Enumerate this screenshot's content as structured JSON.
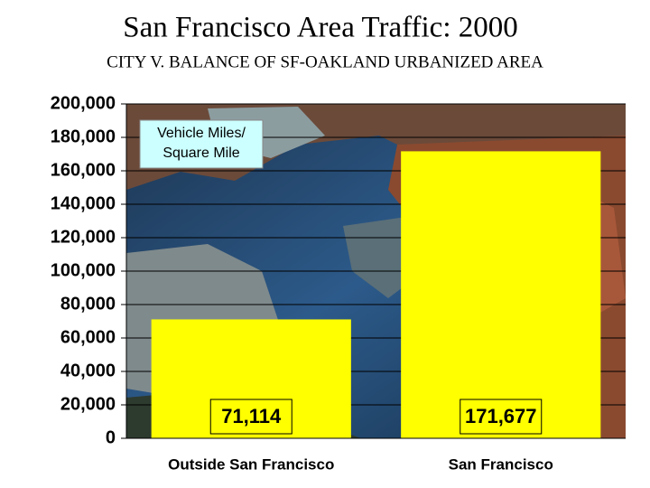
{
  "chart_data": {
    "type": "bar",
    "title": "San Francisco Area Traffic: 2000",
    "subtitle": "CITY V. BALANCE OF SF-OAKLAND URBANIZED AREA",
    "annotation": [
      "Vehicle Miles/",
      "Square Mile"
    ],
    "categories": [
      "Outside San Francisco",
      "San Francisco"
    ],
    "values": [
      71114,
      171677
    ],
    "value_labels": [
      "71,114",
      "171,677"
    ],
    "color": "#ffff00",
    "ylim": [
      0,
      200000
    ],
    "yticks": [
      0,
      {
        "value": 20000,
        "label": "20,000"
      },
      {
        "value": 40000,
        "label": "40,000"
      },
      {
        "value": 60000,
        "label": "60,000"
      },
      {
        "value": 80000,
        "label": "80,000"
      },
      {
        "value": 100000,
        "label": "100,000"
      },
      {
        "value": 120000,
        "label": "120,000"
      },
      {
        "value": 140000,
        "label": "140,000"
      },
      {
        "value": 160000,
        "label": "160,000"
      },
      {
        "value": 180000,
        "label": "180,000"
      },
      {
        "value": 200000,
        "label": "200,000"
      }
    ],
    "grid": true
  }
}
